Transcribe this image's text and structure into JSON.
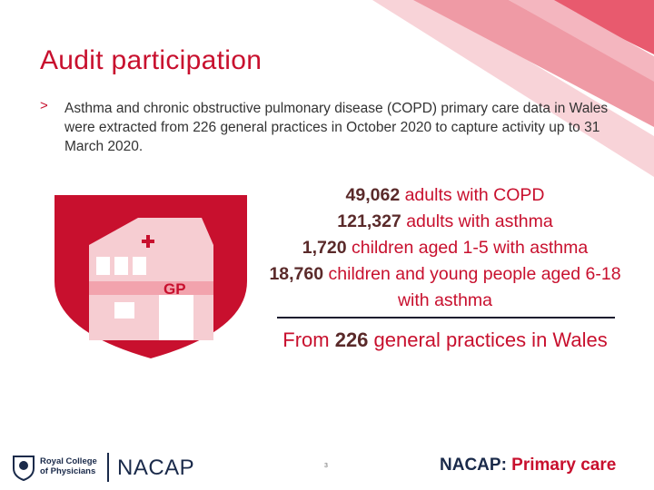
{
  "slide": {
    "title": "Audit participation",
    "bullet_marker": ">",
    "bullet_text": "Asthma and chronic obstructive pulmonary disease (COPD) primary care data in Wales were extracted from 226 general practices in October 2020 to capture activity up to 31 March 2020.",
    "gp_label": "GP",
    "stats": [
      {
        "value": "49,062",
        "text": " adults with COPD"
      },
      {
        "value": "121,327",
        "text": " adults with asthma"
      },
      {
        "value": "1,720",
        "text": " children aged 1-5 with asthma"
      },
      {
        "value": "18,760",
        "text": " children and young people aged 6-18 with asthma"
      }
    ],
    "from": {
      "prefix": "From ",
      "value": "226",
      "suffix": " general practices in Wales"
    },
    "page_number": "3"
  },
  "footer": {
    "rcp_line1": "Royal College",
    "rcp_line2": "of Physicians",
    "nacap_left": "NACAP",
    "nacap_right_prefix": "NACAP",
    "nacap_right_colon": ":",
    "nacap_right_suffix": " Primary care"
  },
  "colors": {
    "accent": "#c8102e",
    "navy": "#1a2a4a",
    "pink": "#f2a3ad",
    "pale_pink": "#f6cdd2"
  }
}
